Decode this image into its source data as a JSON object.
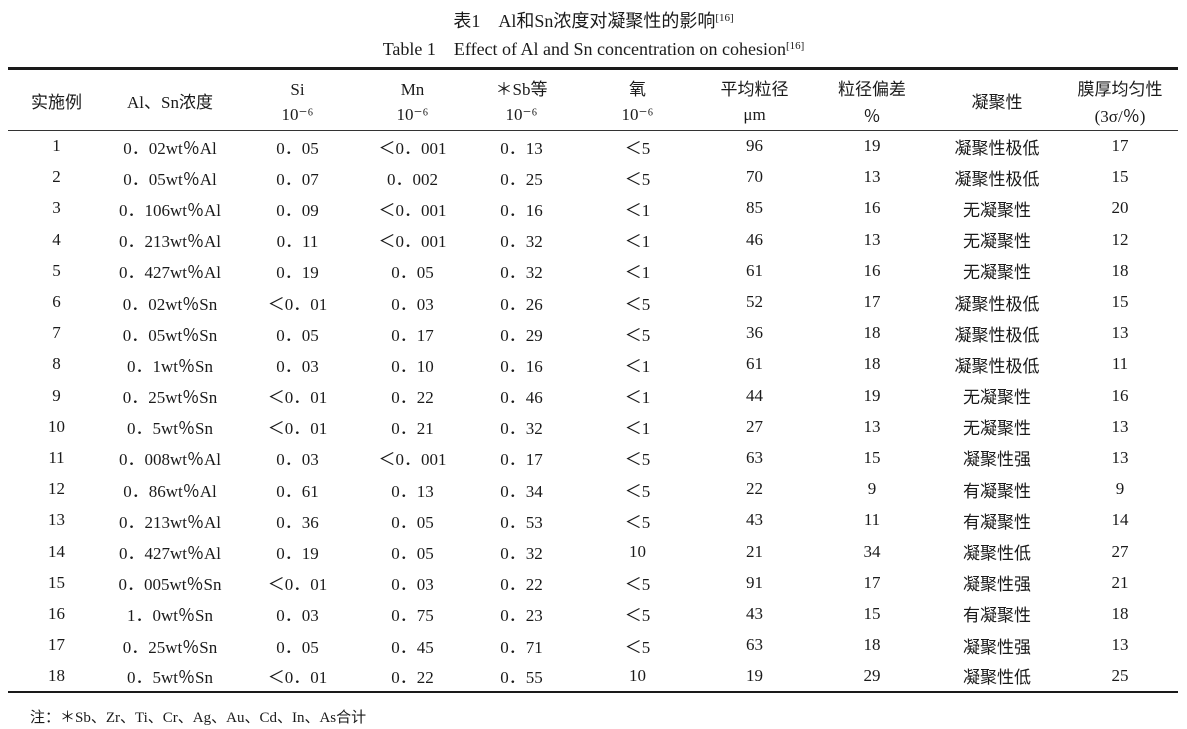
{
  "caption_zh": "表1　Al和Sn浓度对凝聚性的影响",
  "caption_en": "Table 1　Effect of Al and Sn concentration on cohesion",
  "caption_ref": "[16]",
  "headers": [
    {
      "top": "实施例",
      "unit": ""
    },
    {
      "top": "Al、Sn浓度",
      "unit": ""
    },
    {
      "top": "Si",
      "unit": "10⁻⁶"
    },
    {
      "top": "Mn",
      "unit": "10⁻⁶"
    },
    {
      "top": "＊Sb等",
      "unit": "10⁻⁶"
    },
    {
      "top": "氧",
      "unit": "10⁻⁶"
    },
    {
      "top": "平均粒径",
      "unit": "μm"
    },
    {
      "top": "粒径偏差",
      "unit": "％"
    },
    {
      "top": "凝聚性",
      "unit": ""
    },
    {
      "top": "膜厚均匀性",
      "unit": "(3σ/％)"
    }
  ],
  "rows": [
    [
      "1",
      "0．02wt％Al",
      "0．05",
      "＜0．001",
      "0．13",
      "＜5",
      "96",
      "19",
      "凝聚性极低",
      "17"
    ],
    [
      "2",
      "0．05wt％Al",
      "0．07",
      "0．002",
      "0．25",
      "＜5",
      "70",
      "13",
      "凝聚性极低",
      "15"
    ],
    [
      "3",
      "0．106wt％Al",
      "0．09",
      "＜0．001",
      "0．16",
      "＜1",
      "85",
      "16",
      "无凝聚性",
      "20"
    ],
    [
      "4",
      "0．213wt％Al",
      "0．11",
      "＜0．001",
      "0．32",
      "＜1",
      "46",
      "13",
      "无凝聚性",
      "12"
    ],
    [
      "5",
      "0．427wt％Al",
      "0．19",
      "0．05",
      "0．32",
      "＜1",
      "61",
      "16",
      "无凝聚性",
      "18"
    ],
    [
      "6",
      "0．02wt％Sn",
      "＜0．01",
      "0．03",
      "0．26",
      "＜5",
      "52",
      "17",
      "凝聚性极低",
      "15"
    ],
    [
      "7",
      "0．05wt％Sn",
      "0．05",
      "0．17",
      "0．29",
      "＜5",
      "36",
      "18",
      "凝聚性极低",
      "13"
    ],
    [
      "8",
      "0．1wt％Sn",
      "0．03",
      "0．10",
      "0．16",
      "＜1",
      "61",
      "18",
      "凝聚性极低",
      "11"
    ],
    [
      "9",
      "0．25wt％Sn",
      "＜0．01",
      "0．22",
      "0．46",
      "＜1",
      "44",
      "19",
      "无凝聚性",
      "16"
    ],
    [
      "10",
      "0．5wt％Sn",
      "＜0．01",
      "0．21",
      "0．32",
      "＜1",
      "27",
      "13",
      "无凝聚性",
      "13"
    ],
    [
      "11",
      "0．008wt％Al",
      "0．03",
      "＜0．001",
      "0．17",
      "＜5",
      "63",
      "15",
      "凝聚性强",
      "13"
    ],
    [
      "12",
      "0．86wt％Al",
      "0．61",
      "0．13",
      "0．34",
      "＜5",
      "22",
      "9",
      "有凝聚性",
      "9"
    ],
    [
      "13",
      "0．213wt％Al",
      "0．36",
      "0．05",
      "0．53",
      "＜5",
      "43",
      "11",
      "有凝聚性",
      "14"
    ],
    [
      "14",
      "0．427wt％Al",
      "0．19",
      "0．05",
      "0．32",
      "10",
      "21",
      "34",
      "凝聚性低",
      "27"
    ],
    [
      "15",
      "0．005wt％Sn",
      "＜0．01",
      "0．03",
      "0．22",
      "＜5",
      "91",
      "17",
      "凝聚性强",
      "21"
    ],
    [
      "16",
      "1．0wt％Sn",
      "0．03",
      "0．75",
      "0．23",
      "＜5",
      "43",
      "15",
      "有凝聚性",
      "18"
    ],
    [
      "17",
      "0．25wt％Sn",
      "0．05",
      "0．45",
      "0．71",
      "＜5",
      "63",
      "18",
      "凝聚性强",
      "13"
    ],
    [
      "18",
      "0．5wt％Sn",
      "＜0．01",
      "0．22",
      "0．55",
      "10",
      "19",
      "29",
      "凝聚性低",
      "25"
    ]
  ],
  "note": "注：＊Sb、Zr、Ti、Cr、Ag、Au、Cd、In、As合计"
}
